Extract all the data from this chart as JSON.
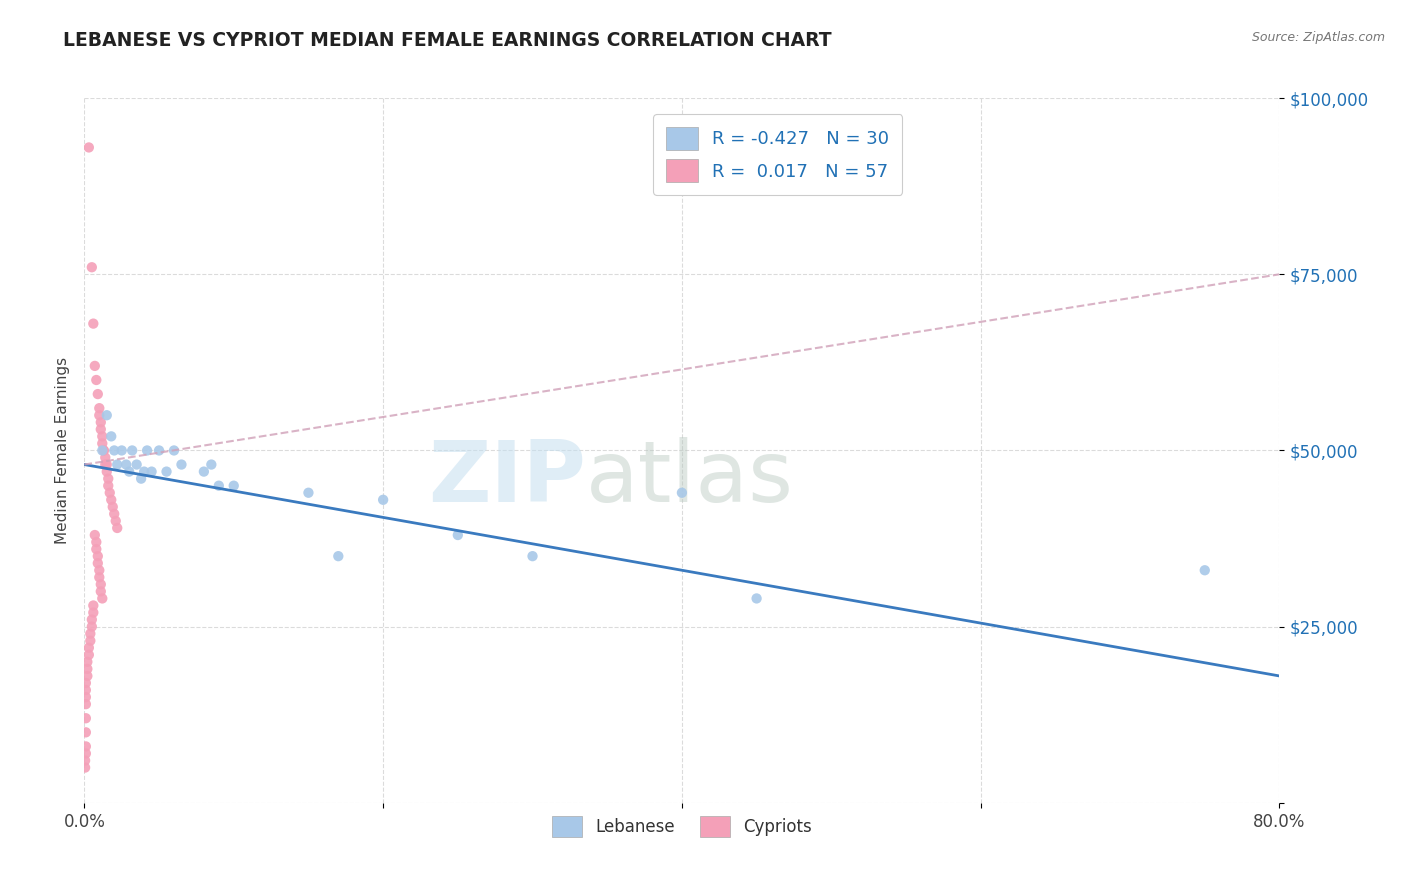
{
  "title": "LEBANESE VS CYPRIOT MEDIAN FEMALE EARNINGS CORRELATION CHART",
  "source_text": "Source: ZipAtlas.com",
  "ylabel": "Median Female Earnings",
  "xlim": [
    0.0,
    0.8
  ],
  "ylim": [
    0,
    100000
  ],
  "xtick_vals": [
    0.0,
    0.2,
    0.4,
    0.6,
    0.8
  ],
  "xticklabels": [
    "0.0%",
    "",
    "",
    "",
    "80.0%"
  ],
  "ytick_values": [
    0,
    25000,
    50000,
    75000,
    100000
  ],
  "ytick_labels": [
    "",
    "$25,000",
    "$50,000",
    "$75,000",
    "$100,000"
  ],
  "watermark_zip": "ZIP",
  "watermark_atlas": "atlas",
  "legend_line1": "R = -0.427   N = 30",
  "legend_line2": "R =  0.017   N = 57",
  "label_lebanese": "Lebanese",
  "label_cypriots": "Cypriots",
  "blue_color": "#a8c8e8",
  "pink_color": "#f4a0b8",
  "blue_trend_color": "#3a7abf",
  "pink_trend_color": "#d0a0b8",
  "blue_scatter": [
    [
      0.012,
      50000
    ],
    [
      0.015,
      55000
    ],
    [
      0.018,
      52000
    ],
    [
      0.02,
      50000
    ],
    [
      0.022,
      48000
    ],
    [
      0.025,
      50000
    ],
    [
      0.028,
      48000
    ],
    [
      0.03,
      47000
    ],
    [
      0.032,
      50000
    ],
    [
      0.035,
      48000
    ],
    [
      0.038,
      46000
    ],
    [
      0.04,
      47000
    ],
    [
      0.042,
      50000
    ],
    [
      0.045,
      47000
    ],
    [
      0.05,
      50000
    ],
    [
      0.055,
      47000
    ],
    [
      0.06,
      50000
    ],
    [
      0.065,
      48000
    ],
    [
      0.08,
      47000
    ],
    [
      0.085,
      48000
    ],
    [
      0.09,
      45000
    ],
    [
      0.1,
      45000
    ],
    [
      0.15,
      44000
    ],
    [
      0.17,
      35000
    ],
    [
      0.2,
      43000
    ],
    [
      0.25,
      38000
    ],
    [
      0.3,
      35000
    ],
    [
      0.4,
      44000
    ],
    [
      0.45,
      29000
    ],
    [
      0.75,
      33000
    ]
  ],
  "pink_scatter": [
    [
      0.003,
      93000
    ],
    [
      0.005,
      76000
    ],
    [
      0.006,
      68000
    ],
    [
      0.007,
      62000
    ],
    [
      0.008,
      60000
    ],
    [
      0.009,
      58000
    ],
    [
      0.01,
      56000
    ],
    [
      0.01,
      55000
    ],
    [
      0.011,
      54000
    ],
    [
      0.011,
      53000
    ],
    [
      0.012,
      52000
    ],
    [
      0.012,
      51000
    ],
    [
      0.013,
      50000
    ],
    [
      0.013,
      50000
    ],
    [
      0.014,
      49000
    ],
    [
      0.014,
      48000
    ],
    [
      0.015,
      48000
    ],
    [
      0.015,
      47000
    ],
    [
      0.016,
      46000
    ],
    [
      0.016,
      45000
    ],
    [
      0.017,
      44000
    ],
    [
      0.018,
      43000
    ],
    [
      0.019,
      42000
    ],
    [
      0.02,
      41000
    ],
    [
      0.021,
      40000
    ],
    [
      0.022,
      39000
    ],
    [
      0.007,
      38000
    ],
    [
      0.008,
      37000
    ],
    [
      0.008,
      36000
    ],
    [
      0.009,
      35000
    ],
    [
      0.009,
      34000
    ],
    [
      0.01,
      33000
    ],
    [
      0.01,
      32000
    ],
    [
      0.011,
      31000
    ],
    [
      0.011,
      30000
    ],
    [
      0.012,
      29000
    ],
    [
      0.006,
      28000
    ],
    [
      0.006,
      27000
    ],
    [
      0.005,
      26000
    ],
    [
      0.005,
      25000
    ],
    [
      0.004,
      24000
    ],
    [
      0.004,
      23000
    ],
    [
      0.003,
      22000
    ],
    [
      0.003,
      21000
    ],
    [
      0.002,
      20000
    ],
    [
      0.002,
      19000
    ],
    [
      0.002,
      18000
    ],
    [
      0.001,
      17000
    ],
    [
      0.001,
      16000
    ],
    [
      0.001,
      15000
    ],
    [
      0.001,
      14000
    ],
    [
      0.001,
      12000
    ],
    [
      0.001,
      10000
    ],
    [
      0.001,
      8000
    ],
    [
      0.001,
      7000
    ],
    [
      0.0005,
      6000
    ],
    [
      0.0005,
      5000
    ]
  ],
  "background_color": "#ffffff",
  "grid_color": "#d8d8d8",
  "title_color": "#222222",
  "source_color": "#777777",
  "axis_label_color": "#444444",
  "ytick_color": "#2171b5",
  "xtick_color": "#444444"
}
